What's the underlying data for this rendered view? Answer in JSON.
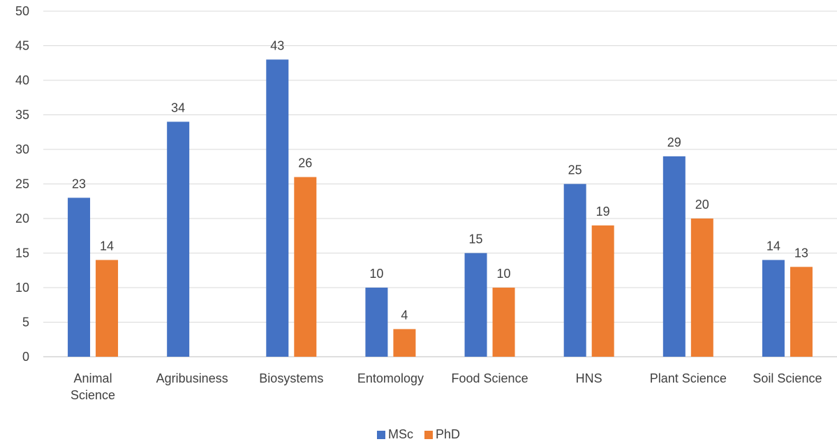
{
  "chart_data": {
    "type": "bar",
    "title": "",
    "xlabel": "",
    "ylabel": "",
    "categories": [
      "Animal Science",
      "Agribusiness",
      "Biosystems",
      "Entomology",
      "Food Science",
      "HNS",
      "Plant Science",
      "Soil Science"
    ],
    "category_lines": [
      [
        "Animal",
        "Science"
      ],
      [
        "Agribusiness"
      ],
      [
        "Biosystems"
      ],
      [
        "Entomology"
      ],
      [
        "Food Science"
      ],
      [
        "HNS"
      ],
      [
        "Plant Science"
      ],
      [
        "Soil Science"
      ]
    ],
    "series": [
      {
        "name": "MSc",
        "color": "#4472C4",
        "values": [
          23,
          34,
          43,
          10,
          15,
          25,
          29,
          14
        ]
      },
      {
        "name": "PhD",
        "color": "#ED7D31",
        "values": [
          14,
          null,
          26,
          4,
          10,
          19,
          20,
          13
        ]
      }
    ],
    "ylim": [
      0,
      50
    ],
    "yticks": [
      0,
      5,
      10,
      15,
      20,
      25,
      30,
      35,
      40,
      45,
      50
    ],
    "grid": true,
    "legend_position": "bottom",
    "data_labels": true
  }
}
